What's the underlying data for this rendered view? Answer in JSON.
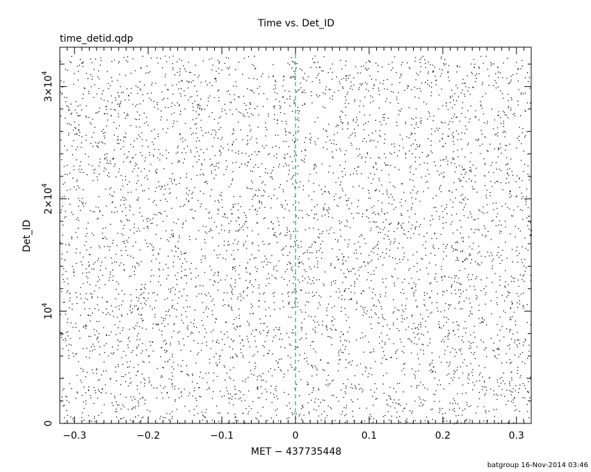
{
  "chart_data": {
    "type": "scatter",
    "title": "Time vs. Det_ID",
    "subtitle": "time_detid.qdp",
    "xlabel": "MET − 437735448",
    "ylabel": "Det_ID",
    "xlim": [
      -0.32,
      0.32
    ],
    "ylim": [
      0,
      33500
    ],
    "x_ticks": [
      {
        "value": -0.3,
        "label": "−0.3"
      },
      {
        "value": -0.2,
        "label": "−0.2"
      },
      {
        "value": -0.1,
        "label": "−0.1"
      },
      {
        "value": 0,
        "label": "0"
      },
      {
        "value": 0.1,
        "label": "0.1"
      },
      {
        "value": 0.2,
        "label": "0.2"
      },
      {
        "value": 0.3,
        "label": "0.3"
      }
    ],
    "y_ticks": [
      {
        "value": 0,
        "label": "0"
      },
      {
        "value": 10000,
        "label": "10",
        "exp": "4"
      },
      {
        "value": 20000,
        "label": "2×10",
        "exp": "4"
      },
      {
        "value": 30000,
        "label": "3×10",
        "exp": "4"
      }
    ],
    "reference_line": {
      "x": 0,
      "color": "#2a9d9d",
      "style": "dashed"
    },
    "points": {
      "count": 5200,
      "x_range": [
        -0.32,
        0.32
      ],
      "y_range": [
        0,
        32768
      ],
      "color": "#000000",
      "note": "dense uniform random distribution of events across detectors"
    },
    "grid": false,
    "legend": "none"
  },
  "footer": "batgroup 16-Nov-2014 03:46"
}
